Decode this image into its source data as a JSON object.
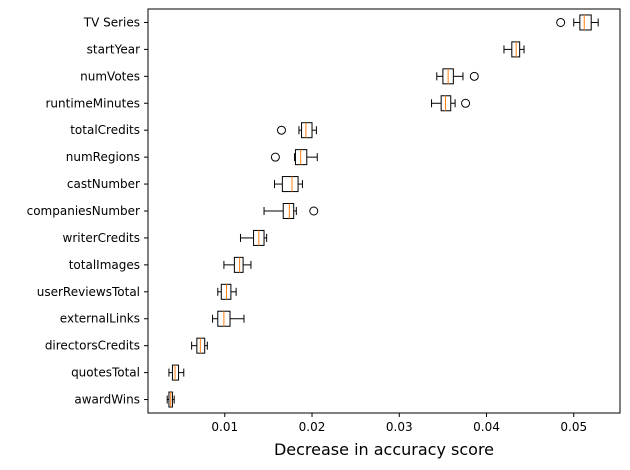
{
  "chart_data": {
    "type": "boxplot",
    "orientation": "horizontal",
    "xlabel": "Decrease in accuracy score",
    "ylabel": "",
    "xlim": [
      0.0012,
      0.0553
    ],
    "xticks": [
      0.01,
      0.02,
      0.03,
      0.04,
      0.05
    ],
    "xtick_labels": [
      "0.01",
      "0.02",
      "0.03",
      "0.04",
      "0.05"
    ],
    "grid": false,
    "box_color": "#000000",
    "median_color": "#ff7f0e",
    "categories": [
      "TV Series",
      "startYear",
      "numVotes",
      "runtimeMinutes",
      "totalCredits",
      "numRegions",
      "castNumber",
      "companiesNumber",
      "writerCredits",
      "totalImages",
      "userReviewsTotal",
      "externalLinks",
      "directorsCredits",
      "quotesTotal",
      "awardWins"
    ],
    "boxes": [
      {
        "whislo": 0.05,
        "q1": 0.0507,
        "med": 0.0512,
        "q3": 0.052,
        "whishi": 0.0528,
        "fliers": [
          0.0485
        ]
      },
      {
        "whislo": 0.042,
        "q1": 0.0429,
        "med": 0.0434,
        "q3": 0.0438,
        "whishi": 0.0443,
        "fliers": []
      },
      {
        "whislo": 0.0343,
        "q1": 0.035,
        "med": 0.0356,
        "q3": 0.0362,
        "whishi": 0.0373,
        "fliers": [
          0.0386
        ]
      },
      {
        "whislo": 0.0337,
        "q1": 0.0348,
        "med": 0.0353,
        "q3": 0.0359,
        "whishi": 0.0364,
        "fliers": [
          0.0376
        ]
      },
      {
        "whislo": 0.0185,
        "q1": 0.0188,
        "med": 0.0193,
        "q3": 0.02,
        "whishi": 0.0205,
        "fliers": [
          0.0165
        ]
      },
      {
        "whislo": 0.018,
        "q1": 0.0181,
        "med": 0.0187,
        "q3": 0.0194,
        "whishi": 0.0206,
        "fliers": [
          0.0158
        ]
      },
      {
        "whislo": 0.0157,
        "q1": 0.0166,
        "med": 0.0177,
        "q3": 0.0184,
        "whishi": 0.0189,
        "fliers": []
      },
      {
        "whislo": 0.0145,
        "q1": 0.0167,
        "med": 0.0174,
        "q3": 0.0179,
        "whishi": 0.0182,
        "fliers": [
          0.0202
        ]
      },
      {
        "whislo": 0.0118,
        "q1": 0.0133,
        "med": 0.0139,
        "q3": 0.0145,
        "whishi": 0.0148,
        "fliers": []
      },
      {
        "whislo": 0.0099,
        "q1": 0.0111,
        "med": 0.0117,
        "q3": 0.0121,
        "whishi": 0.013,
        "fliers": []
      },
      {
        "whislo": 0.0092,
        "q1": 0.0096,
        "med": 0.0102,
        "q3": 0.0107,
        "whishi": 0.0113,
        "fliers": []
      },
      {
        "whislo": 0.0086,
        "q1": 0.0092,
        "med": 0.0099,
        "q3": 0.0106,
        "whishi": 0.0122,
        "fliers": []
      },
      {
        "whislo": 0.0062,
        "q1": 0.0068,
        "med": 0.0072,
        "q3": 0.0077,
        "whishi": 0.008,
        "fliers": []
      },
      {
        "whislo": 0.0036,
        "q1": 0.004,
        "med": 0.0043,
        "q3": 0.0047,
        "whishi": 0.0053,
        "fliers": []
      },
      {
        "whislo": 0.0034,
        "q1": 0.0036,
        "med": 0.0038,
        "q3": 0.004,
        "whishi": 0.0042,
        "fliers": []
      }
    ]
  }
}
